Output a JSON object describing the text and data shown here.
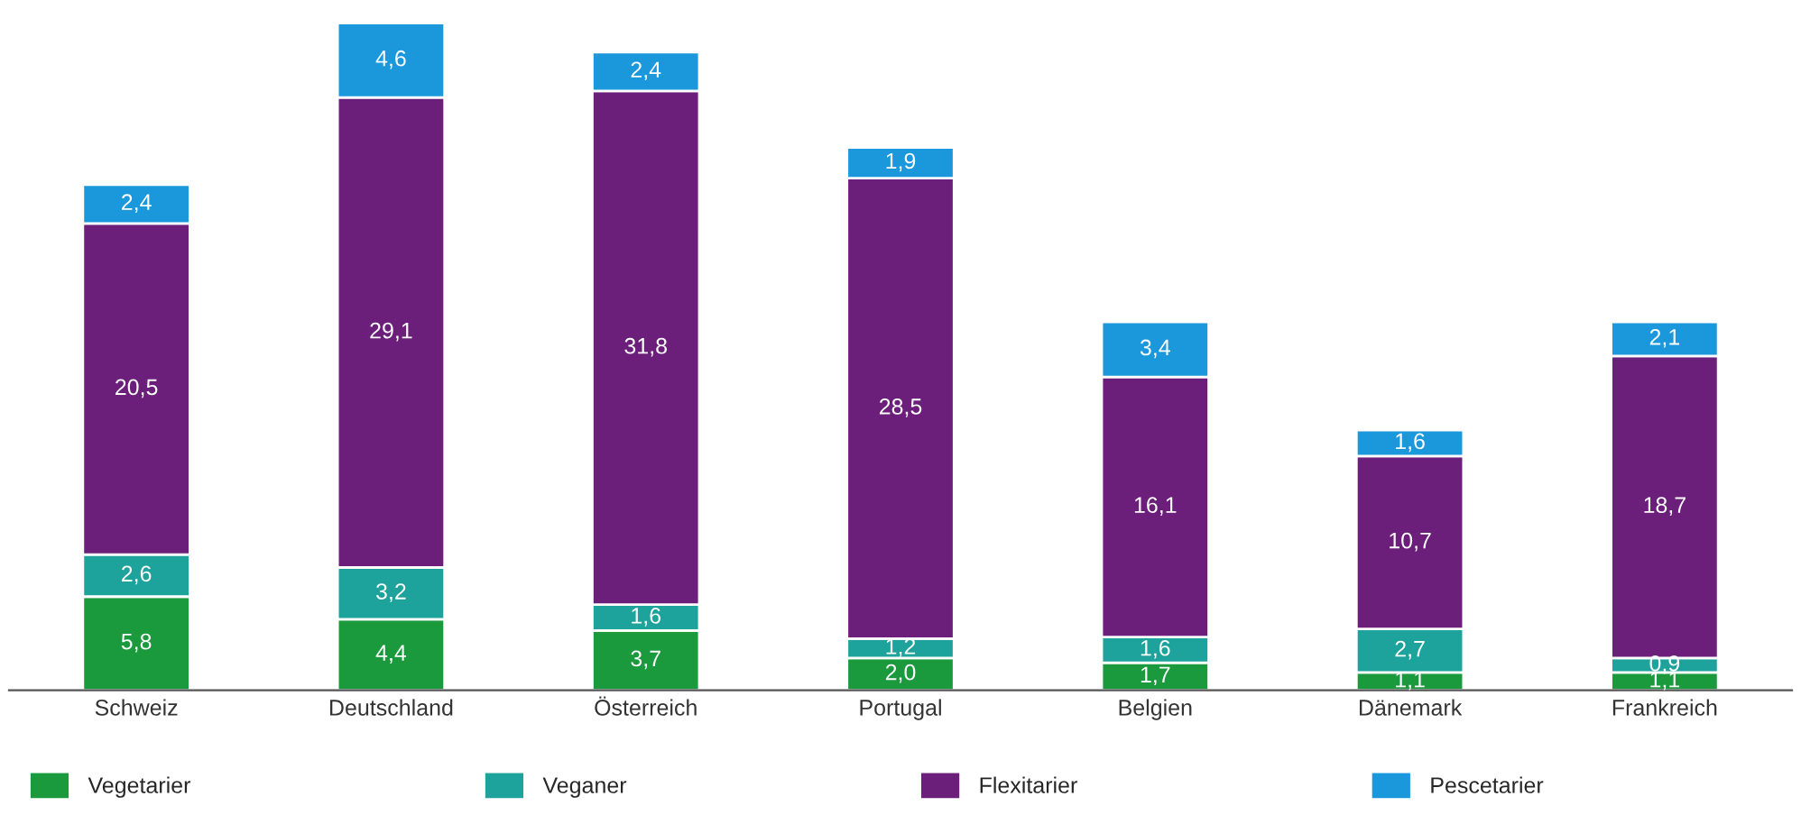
{
  "chart_data": {
    "type": "bar",
    "stacked": true,
    "legend": "bottom",
    "grid": false,
    "categories": [
      "Schweiz",
      "Deutschland",
      "Österreich",
      "Portugal",
      "Belgien",
      "Dänemark",
      "Frankreich"
    ],
    "series": [
      {
        "name": "Vegetarier",
        "color": "#1a9a3c",
        "values": [
          5.8,
          4.4,
          3.7,
          2.0,
          1.7,
          1.1,
          1.1
        ],
        "value_labels": [
          "5,8",
          "4,4",
          "3,7",
          "2,0",
          "1,7",
          "1,1",
          "1,1"
        ]
      },
      {
        "name": "Veganer",
        "color": "#1ea39c",
        "values": [
          2.6,
          3.2,
          1.6,
          1.2,
          1.6,
          2.7,
          0.9
        ],
        "value_labels": [
          "2,6",
          "3,2",
          "1,6",
          "1,2",
          "1,6",
          "2,7",
          "0,9"
        ]
      },
      {
        "name": "Flexitarier",
        "color": "#6c1f7a",
        "values": [
          20.5,
          29.1,
          31.8,
          28.5,
          16.1,
          10.7,
          18.7
        ],
        "value_labels": [
          "20,5",
          "29,1",
          "31,8",
          "28,5",
          "16,1",
          "10,7",
          "18,7"
        ]
      },
      {
        "name": "Pescetarier",
        "color": "#1b98dc",
        "values": [
          2.4,
          4.6,
          2.4,
          1.9,
          3.4,
          1.6,
          2.1
        ],
        "value_labels": [
          "2,4",
          "4,6",
          "2,4",
          "1,9",
          "3,4",
          "1,6",
          "2,1"
        ]
      }
    ]
  }
}
